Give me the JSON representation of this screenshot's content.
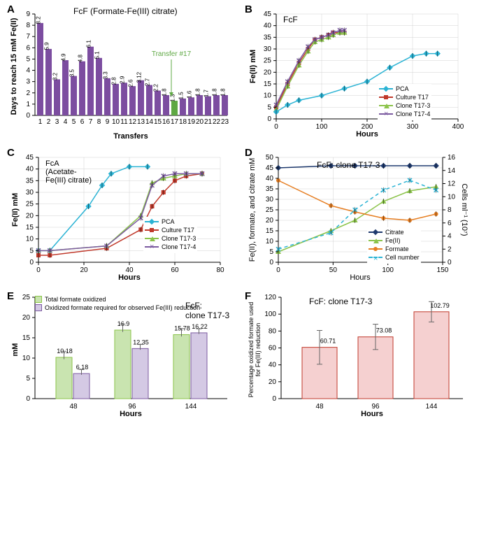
{
  "panels": {
    "A": {
      "label": "A",
      "title": "FcF (Formate-Fe(III) citrate)",
      "xlabel": "Transfers",
      "ylabel": "Days to reach 15 mM Fe(II)",
      "ylim": [
        0,
        9
      ],
      "ytick_step": 1,
      "categories": [
        "1",
        "2",
        "3",
        "4",
        "5",
        "6",
        "7",
        "8",
        "9",
        "10",
        "11",
        "12",
        "13",
        "14",
        "15",
        "16",
        "17",
        "18",
        "19",
        "20",
        "21",
        "22",
        "23"
      ],
      "values": [
        8.2,
        5.9,
        3.2,
        4.9,
        3.5,
        4.8,
        6.1,
        5.1,
        3.3,
        2.8,
        2.9,
        2.6,
        3.12,
        2.7,
        2.2,
        1.8,
        1.3,
        1.5,
        1.6,
        1.8,
        1.7,
        1.8,
        1.8
      ],
      "value_labels": [
        "8.2",
        "5.9",
        "3.2",
        "4.9",
        "3.5",
        "4.8",
        "6.1",
        "5.1",
        "3.3",
        "2.8",
        "2.9",
        "2.6",
        "3.12",
        "2.7",
        "2.2",
        "1.8",
        "1.3",
        "1.5",
        "1.6",
        "1.8",
        "1.7",
        "1.8",
        "1.8"
      ],
      "bar_color": "#7c4da0",
      "highlight_index": 16,
      "highlight_color": "#5ea843",
      "annotation": "Transfer #17",
      "annotation_color": "#5ea843"
    },
    "B": {
      "label": "B",
      "title": "FcF",
      "xlabel": "Hours",
      "ylabel": "Fe(II) mM",
      "xlim": [
        0,
        400
      ],
      "ylim": [
        0,
        45
      ],
      "series": [
        {
          "name": "Culture T17",
          "color": "#c0392b",
          "marker": "square",
          "x": [
            0,
            25,
            50,
            70,
            85,
            100,
            115,
            125,
            140,
            150
          ],
          "y": [
            5,
            15,
            24,
            30,
            34,
            35,
            36,
            37,
            37,
            37
          ]
        },
        {
          "name": "Clone T17-3",
          "color": "#8bc34a",
          "marker": "triangle",
          "x": [
            0,
            25,
            50,
            70,
            85,
            100,
            115,
            125,
            140,
            150
          ],
          "y": [
            4,
            14,
            23,
            29,
            33,
            34,
            35,
            36,
            37,
            37
          ]
        },
        {
          "name": "Clone T17-4",
          "color": "#7b5aa0",
          "marker": "x",
          "x": [
            0,
            25,
            50,
            70,
            85,
            100,
            115,
            125,
            140,
            150
          ],
          "y": [
            6,
            16,
            25,
            31,
            34,
            35,
            36,
            37,
            38,
            38
          ]
        },
        {
          "name": "PCA",
          "color": "#2bb3d4",
          "marker": "diamond",
          "x": [
            0,
            25,
            50,
            100,
            150,
            200,
            250,
            300,
            330,
            355
          ],
          "y": [
            3,
            6,
            8,
            10,
            13,
            16,
            22,
            27,
            28,
            28
          ]
        }
      ]
    },
    "C": {
      "label": "C",
      "title": "FcA (Acetate-Fe(III) citrate)",
      "xlabel": "Hours",
      "ylabel": "Fe(II) mM",
      "xlim": [
        0,
        80
      ],
      "ylim": [
        0,
        45
      ],
      "series": [
        {
          "name": "PCA",
          "color": "#2bb3d4",
          "marker": "diamond",
          "x": [
            0,
            5,
            22,
            28,
            32,
            40,
            48
          ],
          "y": [
            5,
            5,
            24,
            33,
            38,
            41,
            41
          ]
        },
        {
          "name": "Culture T17",
          "color": "#c0392b",
          "marker": "square",
          "x": [
            0,
            5,
            30,
            45,
            50,
            55,
            60,
            65,
            72
          ],
          "y": [
            3,
            3,
            6,
            14,
            24,
            30,
            35,
            37,
            38
          ]
        },
        {
          "name": "Clone T17-3",
          "color": "#8bc34a",
          "marker": "triangle",
          "x": [
            0,
            5,
            30,
            45,
            50,
            55,
            60,
            65,
            72
          ],
          "y": [
            5,
            5,
            7,
            20,
            34,
            36,
            37,
            38,
            38
          ]
        },
        {
          "name": "Clone T17-4",
          "color": "#7b5aa0",
          "marker": "x",
          "x": [
            0,
            5,
            30,
            45,
            50,
            55,
            60,
            65,
            72
          ],
          "y": [
            5,
            5,
            7,
            19,
            33,
            37,
            38,
            38,
            38
          ]
        }
      ]
    },
    "D": {
      "label": "D",
      "title": "FcF: clone T17-3",
      "xlabel": "Hours",
      "ylabel_left": "Fe(II), formate, and citrate mM",
      "ylabel_right": "Cells ml⁻¹ (10⁷)",
      "xlim": [
        0,
        150
      ],
      "ylim_left": [
        0,
        50
      ],
      "ylim_right": [
        0,
        16
      ],
      "series": [
        {
          "name": "Citrate",
          "color": "#1f3a6e",
          "marker": "diamond",
          "dash": "solid",
          "x": [
            0,
            48,
            70,
            96,
            120,
            144
          ],
          "y": [
            45,
            46,
            46,
            46,
            46,
            46
          ]
        },
        {
          "name": "Fe(II)",
          "color": "#8bc34a",
          "marker": "triangle",
          "dash": "solid",
          "x": [
            0,
            48,
            70,
            96,
            120,
            144
          ],
          "y": [
            5,
            15,
            20,
            29,
            34,
            36
          ]
        },
        {
          "name": "Formate",
          "color": "#e67e22",
          "marker": "circle",
          "dash": "solid",
          "x": [
            0,
            48,
            70,
            96,
            120,
            144
          ],
          "y": [
            39,
            27,
            24,
            21,
            20,
            23
          ]
        },
        {
          "name": "Cell number",
          "color": "#2bb3d4",
          "marker": "x",
          "dash": "dash",
          "x": [
            0,
            48,
            70,
            96,
            120,
            144
          ],
          "y_right": [
            2,
            4.5,
            8,
            11,
            12.5,
            11
          ]
        }
      ]
    },
    "E": {
      "label": "E",
      "title": "FcF: clone T17-3",
      "xlabel": "Hours",
      "ylabel": "mM",
      "categories": [
        "48",
        "96",
        "144"
      ],
      "ylim": [
        0,
        25
      ],
      "series": [
        {
          "name": "Total formate oxidized",
          "color": "#c9e4b0",
          "border": "#8bc34a",
          "values": [
            10.18,
            16.9,
            15.78
          ],
          "labels": [
            "10.18",
            "16.9",
            "15.78"
          ],
          "err": [
            1.5,
            1.5,
            1.5
          ]
        },
        {
          "name": "Oxidized formate required for observed Fe(III) reduction",
          "color": "#d4c9e4",
          "border": "#7b5aa0",
          "values": [
            6.18,
            12.35,
            16.22
          ],
          "labels": [
            "6.18",
            "12.35",
            "16.22"
          ],
          "err": [
            1.0,
            1.0,
            1.0
          ]
        }
      ]
    },
    "F": {
      "label": "F",
      "title": "FcF: clone T17-3",
      "xlabel": "Hours",
      "ylabel": "Percentage oxidized formate used for Fe(III) reduction",
      "categories": [
        "48",
        "96",
        "144"
      ],
      "ylim": [
        0,
        120
      ],
      "bar_color": "#f5d0d0",
      "bar_border": "#c0392b",
      "values": [
        60.71,
        73.08,
        102.79
      ],
      "labels": [
        "60.71",
        "73.08",
        "102.79"
      ],
      "err": [
        20,
        15,
        12
      ]
    }
  }
}
